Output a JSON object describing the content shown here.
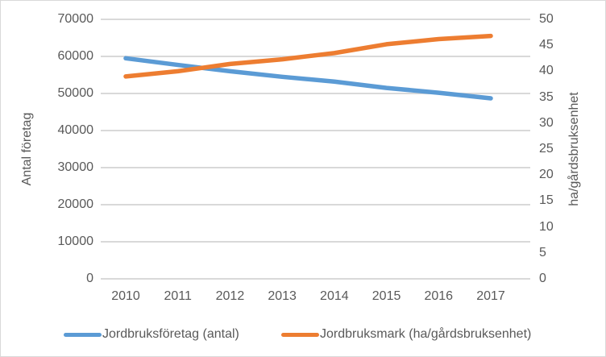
{
  "figure": {
    "background": "#ffffff",
    "border_color": "#d9d9d9",
    "text_color": "#595959",
    "gridline_color": "#d9d9d9"
  },
  "chart_data": {
    "type": "line",
    "categories": [
      "2010",
      "2011",
      "2012",
      "2013",
      "2014",
      "2015",
      "2016",
      "2017"
    ],
    "series": [
      {
        "name": "Jordbruksföretag (antal)",
        "axis": "left",
        "color": "#5B9BD5",
        "values": [
          59500,
          57700,
          56000,
          54500,
          53200,
          51500,
          50200,
          48700
        ]
      },
      {
        "name": "Jordbruksmark (ha/gårdsbruksenhet)",
        "axis": "right",
        "color": "#ED7D31",
        "values": [
          39.0,
          40.0,
          41.4,
          42.3,
          43.5,
          45.2,
          46.2,
          46.8
        ]
      }
    ],
    "left_axis": {
      "title": "Antal företag",
      "min": 0,
      "max": 70000,
      "step": 10000,
      "tick_labels": [
        "0",
        "10000",
        "20000",
        "30000",
        "40000",
        "50000",
        "60000",
        "70000"
      ]
    },
    "right_axis": {
      "title": "ha/gårdsbruksenhet",
      "min": 0,
      "max": 50,
      "step": 5,
      "tick_labels": [
        "0",
        "5",
        "10",
        "15",
        "20",
        "25",
        "30",
        "35",
        "40",
        "45",
        "50"
      ]
    },
    "grid": true,
    "legend_position": "bottom"
  }
}
